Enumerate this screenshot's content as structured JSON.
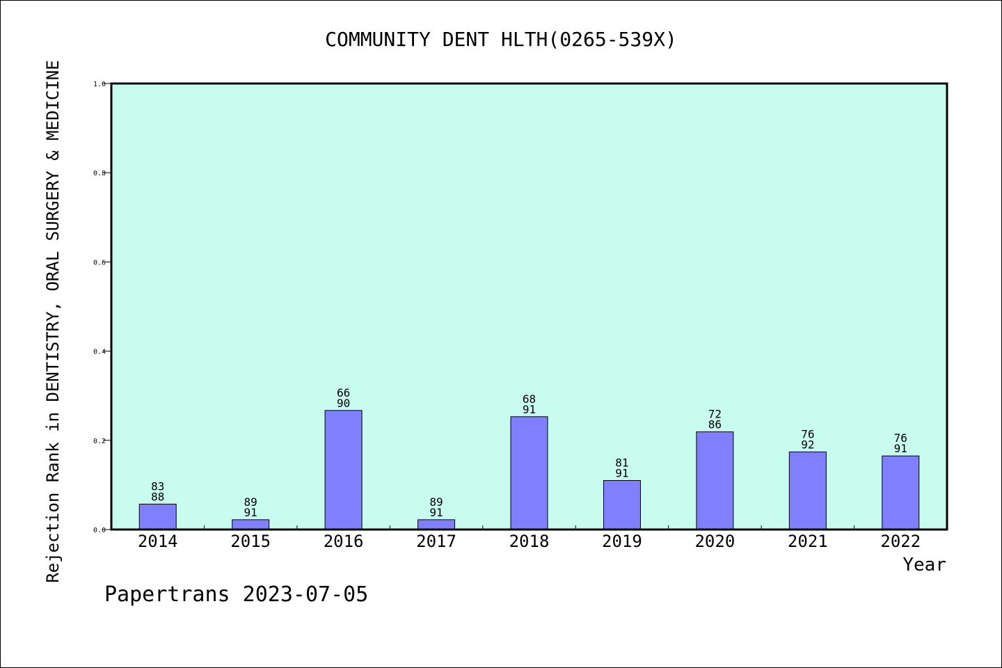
{
  "chart_data": {
    "type": "bar",
    "title": "COMMUNITY DENT HLTH(0265-539X)",
    "xlabel": "Year",
    "ylabel": "Rejection Rank in DENTISTRY, ORAL SURGERY & MEDICINE",
    "categories": [
      "2014",
      "2015",
      "2016",
      "2017",
      "2018",
      "2019",
      "2020",
      "2021",
      "2022"
    ],
    "values": [
      0.057,
      0.022,
      0.267,
      0.022,
      0.253,
      0.11,
      0.219,
      0.174,
      0.165
    ],
    "label_top": [
      "83",
      "89",
      "66",
      "89",
      "68",
      "81",
      "72",
      "76",
      "76"
    ],
    "label_bottom": [
      "88",
      "91",
      "90",
      "91",
      "91",
      "91",
      "86",
      "92",
      "91"
    ],
    "ylim": [
      0,
      1.0
    ],
    "yticks": [
      "0.0",
      "0.2",
      "0.4",
      "0.6",
      "0.8",
      "1.0"
    ],
    "grid": false,
    "colors": {
      "plot_background": "#c8fcee",
      "bar_fill": "#8080ff",
      "bar_stroke": "#000000"
    }
  },
  "footer": {
    "text": "Papertrans 2023-07-05"
  }
}
